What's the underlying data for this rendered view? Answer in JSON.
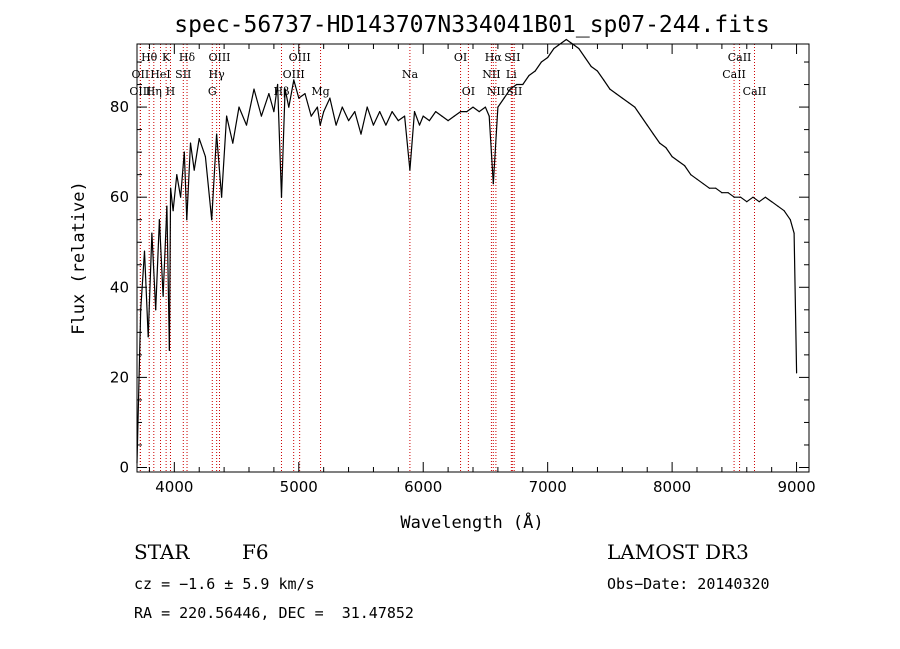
{
  "chart_data": {
    "type": "line",
    "title": "spec-56737-HD143707N334041B01_sp07-244.fits",
    "xlabel": "Wavelength (Å)",
    "ylabel": "Flux (relative)",
    "xlim": [
      3700,
      9100
    ],
    "ylim": [
      -1,
      94
    ],
    "xticks": [
      4000,
      5000,
      6000,
      7000,
      8000,
      9000
    ],
    "yticks": [
      0,
      20,
      40,
      60,
      80
    ],
    "series": [
      {
        "name": "spectrum",
        "x": [
          3700,
          3730,
          3760,
          3790,
          3820,
          3850,
          3880,
          3910,
          3940,
          3960,
          3970,
          3990,
          4020,
          4050,
          4080,
          4100,
          4130,
          4160,
          4200,
          4250,
          4300,
          4340,
          4380,
          4420,
          4470,
          4520,
          4580,
          4640,
          4700,
          4760,
          4800,
          4830,
          4861,
          4890,
          4920,
          4960,
          5000,
          5050,
          5100,
          5150,
          5172,
          5200,
          5250,
          5300,
          5350,
          5400,
          5450,
          5500,
          5550,
          5600,
          5650,
          5700,
          5750,
          5800,
          5850,
          5893,
          5930,
          5970,
          6000,
          6050,
          6100,
          6150,
          6200,
          6250,
          6300,
          6350,
          6400,
          6450,
          6500,
          6530,
          6563,
          6600,
          6650,
          6700,
          6750,
          6800,
          6850,
          6900,
          6950,
          7000,
          7050,
          7100,
          7150,
          7200,
          7250,
          7300,
          7350,
          7400,
          7450,
          7500,
          7550,
          7600,
          7650,
          7700,
          7750,
          7800,
          7850,
          7900,
          7950,
          8000,
          8050,
          8100,
          8150,
          8200,
          8250,
          8300,
          8350,
          8400,
          8450,
          8500,
          8550,
          8600,
          8650,
          8700,
          8750,
          8800,
          8850,
          8900,
          8950,
          8980,
          9000
        ],
        "values": [
          1,
          35,
          48,
          29,
          52,
          35,
          55,
          38,
          58,
          26,
          62,
          57,
          65,
          60,
          70,
          55,
          72,
          66,
          73,
          69,
          55,
          74,
          60,
          78,
          72,
          80,
          76,
          84,
          78,
          83,
          79,
          85,
          60,
          84,
          80,
          86,
          82,
          83,
          78,
          80,
          76,
          79,
          82,
          76,
          80,
          77,
          79,
          74,
          80,
          76,
          79,
          76,
          79,
          77,
          78,
          66,
          79,
          76,
          78,
          77,
          79,
          78,
          77,
          78,
          79,
          79,
          80,
          79,
          80,
          78,
          63,
          80,
          82,
          84,
          85,
          85,
          87,
          88,
          90,
          91,
          93,
          94,
          95,
          94,
          93,
          91,
          89,
          88,
          86,
          84,
          83,
          82,
          81,
          80,
          78,
          76,
          74,
          72,
          71,
          69,
          68,
          67,
          65,
          64,
          63,
          62,
          62,
          61,
          61,
          60,
          60,
          59,
          60,
          59,
          60,
          59,
          58,
          57,
          55,
          52,
          21
        ]
      }
    ],
    "lines": [
      {
        "label": "Hθ",
        "x": 3798,
        "row": 0
      },
      {
        "label": "OII",
        "x": 3727,
        "row": 1
      },
      {
        "label": "OIII",
        "x": 3727,
        "row": 2
      },
      {
        "label": "K",
        "x": 3934,
        "row": 0
      },
      {
        "label": "HeI",
        "x": 3889,
        "row": 1
      },
      {
        "label": "Hη",
        "x": 3835,
        "row": 2
      },
      {
        "label": "Hδ",
        "x": 4102,
        "row": 0
      },
      {
        "label": "SII",
        "x": 4072,
        "row": 1
      },
      {
        "label": "H",
        "x": 3969,
        "row": 2
      },
      {
        "label": "OIII",
        "x": 4363,
        "row": 0
      },
      {
        "label": "Hγ",
        "x": 4340,
        "row": 1
      },
      {
        "label": "G",
        "x": 4305,
        "row": 2
      },
      {
        "label": "OIII",
        "x": 5007,
        "row": 0
      },
      {
        "label": "OIII",
        "x": 4959,
        "row": 1
      },
      {
        "label": "Hβ",
        "x": 4861,
        "row": 2
      },
      {
        "label": "Mg",
        "x": 5175,
        "row": 2
      },
      {
        "label": "Na",
        "x": 5893,
        "row": 1
      },
      {
        "label": "OI",
        "x": 6300,
        "row": 0
      },
      {
        "label": "OI",
        "x": 6363,
        "row": 2
      },
      {
        "label": "Hα",
        "x": 6563,
        "row": 0
      },
      {
        "label": "SII",
        "x": 6716,
        "row": 0
      },
      {
        "label": "NII",
        "x": 6548,
        "row": 1
      },
      {
        "label": "Li",
        "x": 6708,
        "row": 1
      },
      {
        "label": "NII",
        "x": 6584,
        "row": 2
      },
      {
        "label": "SII",
        "x": 6731,
        "row": 2
      },
      {
        "label": "CaII",
        "x": 8542,
        "row": 0
      },
      {
        "label": "CaII",
        "x": 8498,
        "row": 1
      },
      {
        "label": "CaII",
        "x": 8662,
        "row": 2
      }
    ]
  },
  "info": {
    "class": "STAR",
    "subclass": "F6",
    "survey": "LAMOST DR3",
    "cz": "cz = −1.6 ± 5.9 km/s",
    "obs_date": "Obs−Date: 20140320",
    "coords": "RA = 220.56446, DEC =  31.47852"
  },
  "colors": {
    "line": "#000000",
    "marker": "#cc0000",
    "background": "#ffffff"
  }
}
